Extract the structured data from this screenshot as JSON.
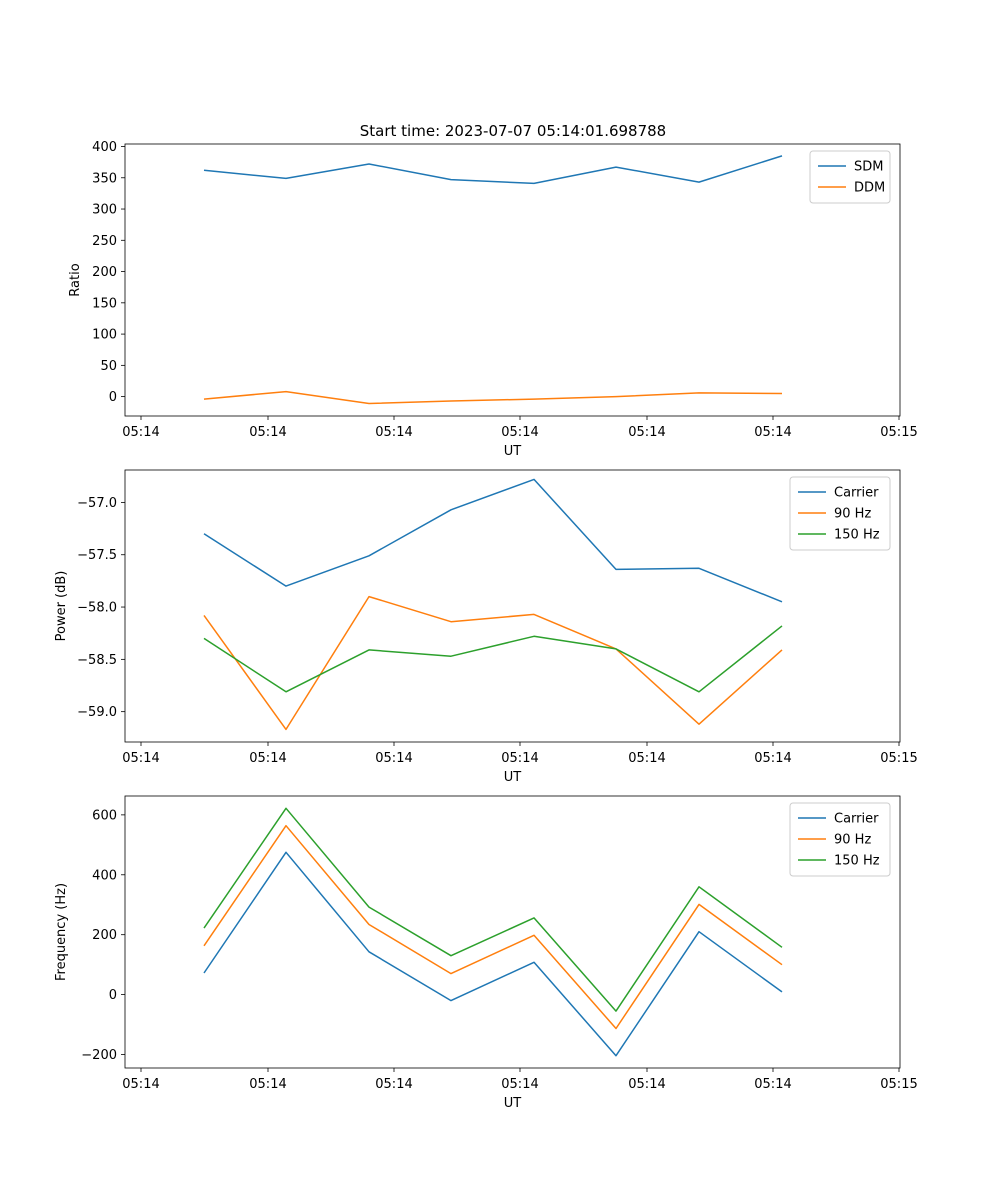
{
  "figure": {
    "title": "Start time: 2023-07-07 05:14:01.698788"
  },
  "chart_data": [
    {
      "type": "line",
      "title": "Start time: 2023-07-07 05:14:01.698788",
      "xlabel": "UT",
      "ylabel": "Ratio",
      "x_ticks": [
        "05:14",
        "05:14",
        "05:14",
        "05:14",
        "05:14",
        "05:14",
        "05:14",
        "05:15"
      ],
      "y_ticks": [
        0,
        50,
        100,
        150,
        200,
        250,
        300,
        350,
        400
      ],
      "y_tick_labels": [
        "0",
        "50",
        "100",
        "150",
        "200",
        "250",
        "300",
        "350",
        "400"
      ],
      "ylim": [
        -31,
        404
      ],
      "x_index": [
        0,
        1,
        2,
        3,
        4,
        5,
        6,
        7
      ],
      "legend_loc": "upper right",
      "series": [
        {
          "name": "SDM",
          "color": "#1f77b4",
          "values": [
            362,
            349,
            372,
            347,
            341,
            367,
            343,
            385
          ]
        },
        {
          "name": "DDM",
          "color": "#ff7f0e",
          "values": [
            -4,
            8,
            -11,
            -7,
            -4,
            0,
            6,
            5
          ]
        }
      ]
    },
    {
      "type": "line",
      "title": "",
      "xlabel": "UT",
      "ylabel": "Power (dB)",
      "x_ticks": [
        "05:14",
        "05:14",
        "05:14",
        "05:14",
        "05:14",
        "05:14",
        "05:14",
        "05:15"
      ],
      "y_ticks": [
        -59.0,
        -58.5,
        -58.0,
        -57.5,
        -57.0
      ],
      "y_tick_labels": [
        "−59.0",
        "−58.5",
        "−58.0",
        "−57.5",
        "−57.0"
      ],
      "ylim": [
        -59.29,
        -56.69
      ],
      "x_index": [
        0,
        1,
        2,
        3,
        4,
        5,
        6,
        7
      ],
      "legend_loc": "upper right",
      "series": [
        {
          "name": "Carrier",
          "color": "#1f77b4",
          "values": [
            -57.3,
            -57.8,
            -57.51,
            -57.07,
            -56.78,
            -57.64,
            -57.63,
            -57.95
          ]
        },
        {
          "name": "90 Hz",
          "color": "#ff7f0e",
          "values": [
            -58.08,
            -59.17,
            -57.9,
            -58.14,
            -58.07,
            -58.4,
            -59.12,
            -58.41
          ]
        },
        {
          "name": "150 Hz",
          "color": "#2ca02c",
          "values": [
            -58.3,
            -58.81,
            -58.41,
            -58.47,
            -58.28,
            -58.4,
            -58.81,
            -58.18
          ]
        }
      ]
    },
    {
      "type": "line",
      "title": "",
      "xlabel": "UT",
      "ylabel": "Frequency (Hz)",
      "x_ticks": [
        "05:14",
        "05:14",
        "05:14",
        "05:14",
        "05:14",
        "05:14",
        "05:14",
        "05:15"
      ],
      "y_ticks": [
        -200,
        0,
        200,
        400,
        600
      ],
      "y_tick_labels": [
        "−200",
        "0",
        "200",
        "400",
        "600"
      ],
      "ylim": [
        -245,
        663
      ],
      "x_index": [
        0,
        1,
        2,
        3,
        4,
        5,
        6,
        7
      ],
      "legend_loc": "upper right",
      "series": [
        {
          "name": "Carrier",
          "color": "#1f77b4",
          "values": [
            72,
            475,
            143,
            -20,
            108,
            -204,
            210,
            9
          ]
        },
        {
          "name": "90 Hz",
          "color": "#ff7f0e",
          "values": [
            163,
            564,
            234,
            70,
            198,
            -113,
            301,
            100
          ]
        },
        {
          "name": "150 Hz",
          "color": "#2ca02c",
          "values": [
            222,
            622,
            292,
            130,
            256,
            -55,
            360,
            158
          ]
        }
      ]
    }
  ]
}
